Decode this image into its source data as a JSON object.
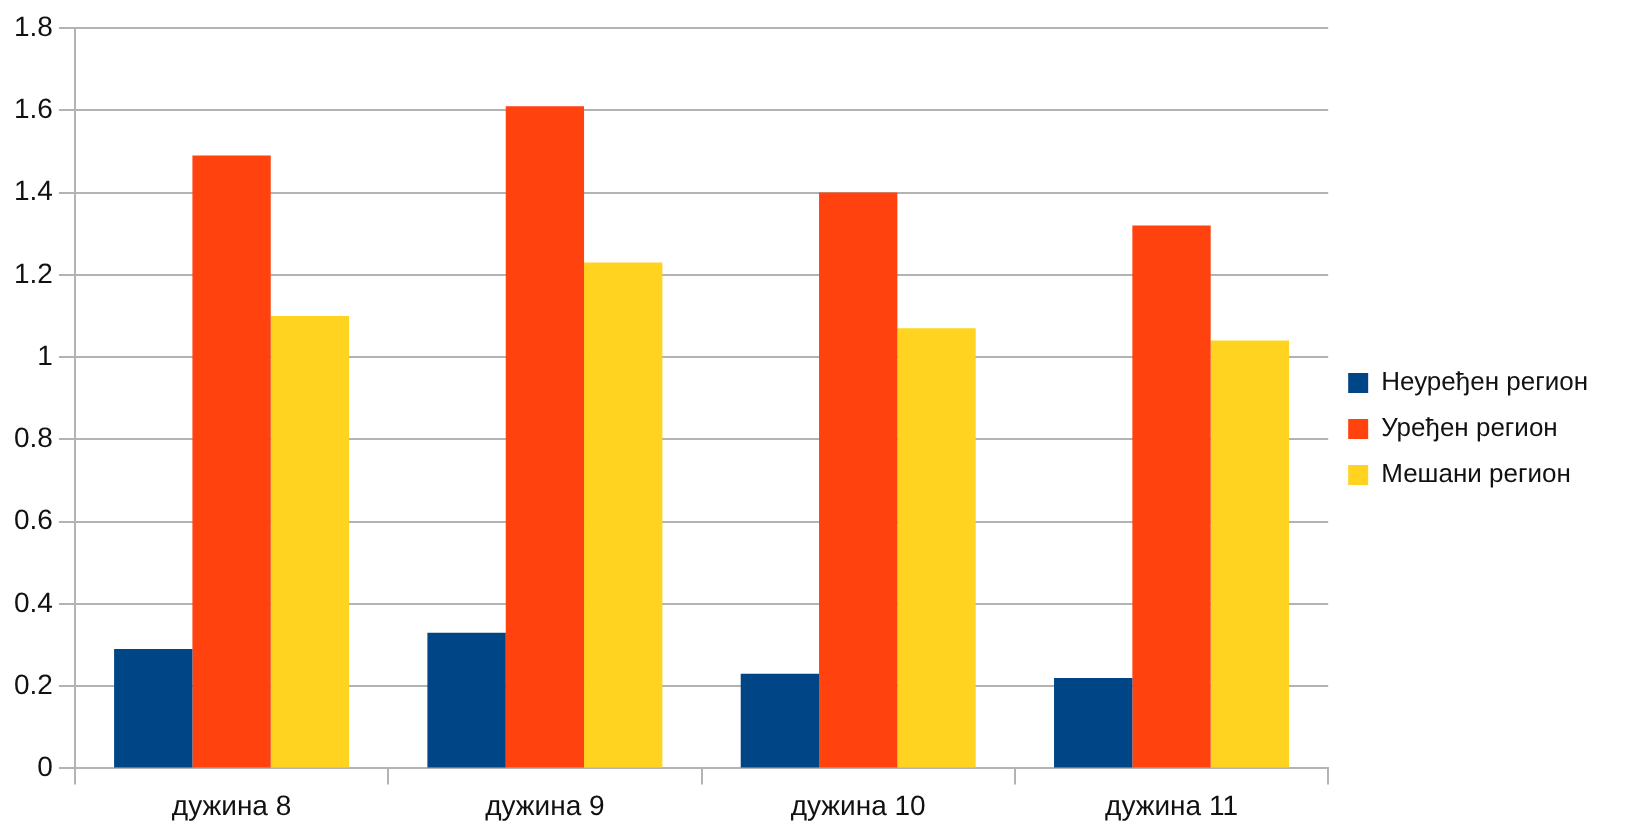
{
  "chart_data": {
    "type": "bar",
    "categories": [
      "дужина 8",
      "дужина 9",
      "дужина 10",
      "дужина 11"
    ],
    "series": [
      {
        "name": "Неуређен регион",
        "color": "#004586",
        "values": [
          0.29,
          0.33,
          0.23,
          0.22
        ]
      },
      {
        "name": "Уређен регион",
        "color": "#ff420e",
        "values": [
          1.49,
          1.61,
          1.4,
          1.32
        ]
      },
      {
        "name": "Мешани регион",
        "color": "#ffd320",
        "values": [
          1.1,
          1.23,
          1.07,
          1.04
        ]
      }
    ],
    "ylim": [
      0,
      1.8
    ],
    "yticks": [
      0,
      0.2,
      0.4,
      0.6,
      0.8,
      1,
      1.2,
      1.4,
      1.6,
      1.8
    ],
    "grid": "y",
    "legend": "right"
  }
}
